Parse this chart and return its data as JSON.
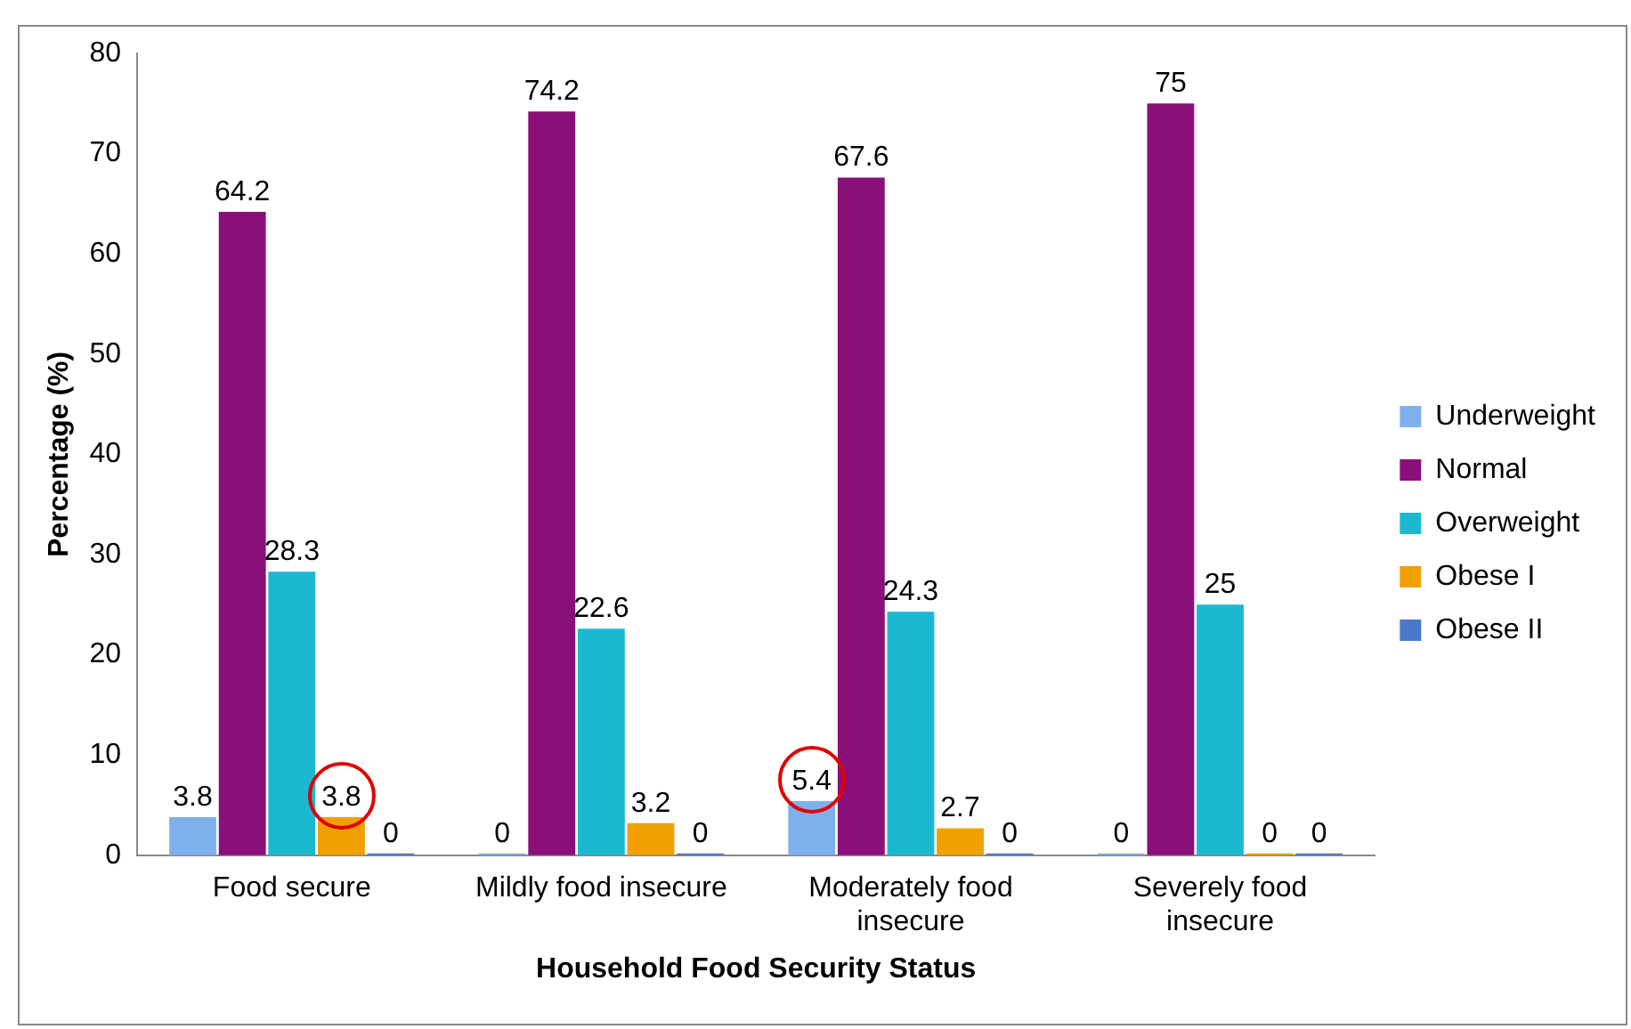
{
  "chart_data": {
    "type": "bar",
    "xlabel": "Household Food Security Status",
    "ylabel": "Percentage (%)",
    "categories": [
      "Food secure",
      "Mildly food insecure",
      "Moderately food insecure",
      "Severely food insecure"
    ],
    "series": [
      {
        "name": "Underweight",
        "color": "#7fb0ee",
        "values": [
          3.8,
          0,
          5.4,
          0
        ]
      },
      {
        "name": "Normal",
        "color": "#8a0f78",
        "values": [
          64.2,
          74.2,
          67.6,
          75
        ]
      },
      {
        "name": "Overweight",
        "color": "#1cb8d0",
        "values": [
          28.3,
          22.6,
          24.3,
          25
        ]
      },
      {
        "name": "Obese I",
        "color": "#f0a000",
        "values": [
          3.8,
          3.2,
          2.7,
          0
        ]
      },
      {
        "name": "Obese II",
        "color": "#4a78c8",
        "values": [
          0,
          0,
          0,
          0
        ]
      }
    ],
    "ylim": [
      0,
      80
    ],
    "yticks": [
      0,
      10,
      20,
      30,
      40,
      50,
      60,
      70,
      80
    ],
    "grid": false,
    "legend": "right",
    "data_labels": true
  }
}
